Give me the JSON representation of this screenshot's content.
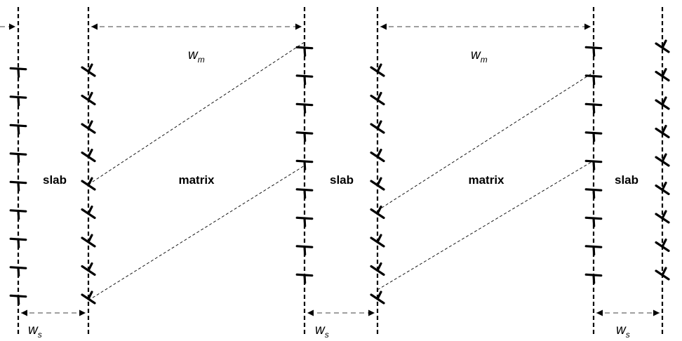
{
  "labels": {
    "slab": "slab",
    "matrix": "matrix",
    "w_matrix_main": "w",
    "w_matrix_sub": "m",
    "w_slab_main": "w",
    "w_slab_sub": "s"
  },
  "regions": [
    {
      "kind": "slab",
      "label": "slab"
    },
    {
      "kind": "matrix",
      "label": "matrix"
    },
    {
      "kind": "slab",
      "label": "slab"
    },
    {
      "kind": "matrix",
      "label": "matrix"
    },
    {
      "kind": "slab",
      "label": "slab"
    }
  ],
  "dislocation_symbol": "edge-dislocation-T",
  "colors": {
    "ink": "#000000",
    "background": "#ffffff"
  }
}
